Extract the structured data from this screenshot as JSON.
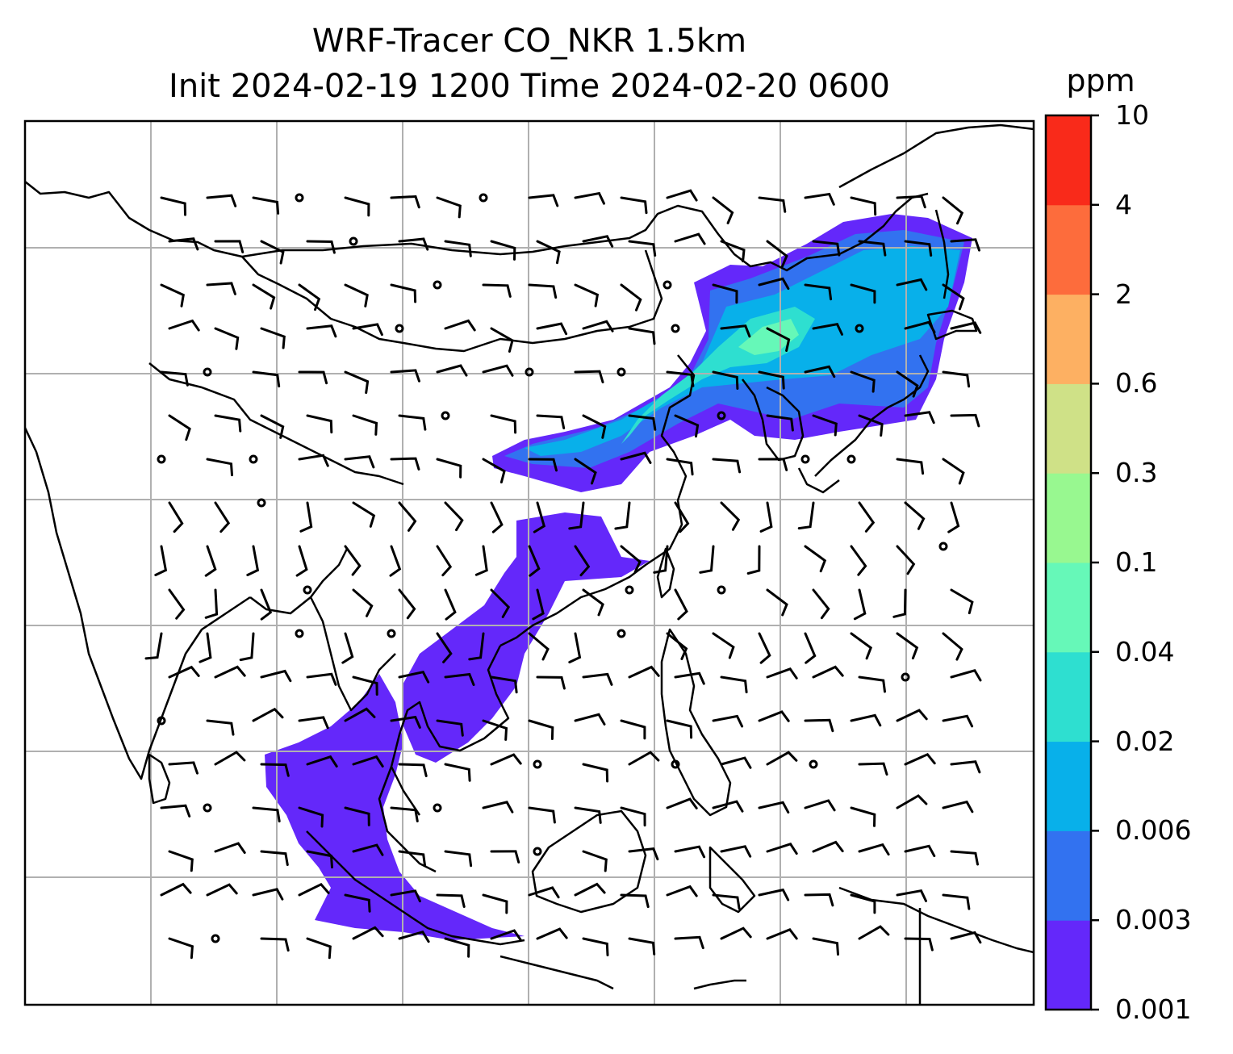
{
  "title": {
    "line1": "WRF-Tracer CO_NKR 1.5km",
    "line2": "Init 2024-02-19 1200 Time 2024-02-20 0600"
  },
  "colorbar": {
    "unit": "ppm",
    "ticks": [
      "0.001",
      "0.003",
      "0.006",
      "0.02",
      "0.04",
      "0.1",
      "0.3",
      "0.6",
      "2",
      "4",
      "10"
    ],
    "colors": [
      "#6428fa",
      "#3272f0",
      "#08b0ea",
      "#2edfd0",
      "#66f8b8",
      "#98f890",
      "#cfe187",
      "#fdb062",
      "#fd6c3c",
      "#f92a1a"
    ]
  },
  "map": {
    "gridlines": true,
    "gridline_color": "#b0b0b0",
    "coastline_color": "#000000",
    "wind_barb_color": "#000000",
    "plume_colors": {
      "faint": "#6428fa",
      "low": "#3272f0",
      "mid": "#08b0ea",
      "high": "#2edfd0",
      "peak": "#66f8b8"
    }
  }
}
